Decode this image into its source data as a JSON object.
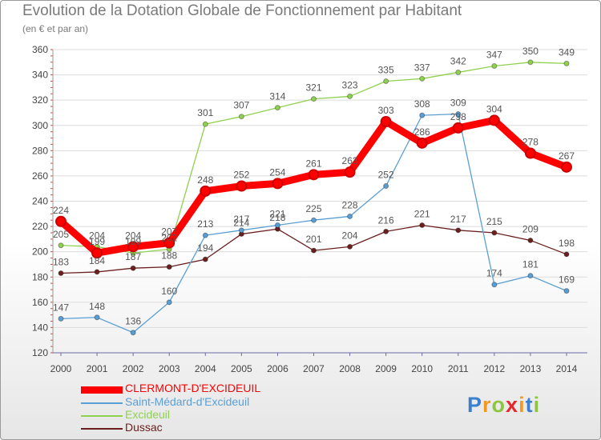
{
  "chart_data": {
    "type": "line",
    "title": "Evolution de la Dotation Globale de Fonctionnement par Habitant",
    "subtitle": "(en € et par an)",
    "x": [
      "2000",
      "2001",
      "2002",
      "2003",
      "2004",
      "2005",
      "2006",
      "2007",
      "2008",
      "2009",
      "2010",
      "2011",
      "2012",
      "2013",
      "2014"
    ],
    "ylim": [
      120,
      360
    ],
    "yticks": [
      120,
      140,
      160,
      180,
      200,
      220,
      240,
      260,
      280,
      300,
      320,
      340,
      360
    ],
    "grid": true,
    "legend_position": "bottom-left",
    "series": [
      {
        "name": "CLERMONT-D'EXCIDEUIL",
        "color": "#ff0000",
        "values": [
          224,
          199,
          204,
          207,
          248,
          252,
          254,
          261,
          263,
          303,
          286,
          298,
          304,
          278,
          267
        ]
      },
      {
        "name": "Saint-Médard-d'Excideuil",
        "color": "#5a9fd4",
        "values": [
          147,
          148,
          136,
          160,
          213,
          217,
          221,
          225,
          228,
          252,
          308,
          309,
          174,
          181,
          169
        ]
      },
      {
        "name": "Excideuil",
        "color": "#8fd14f",
        "values": [
          205,
          204,
          199,
          202,
          301,
          307,
          314,
          321,
          323,
          335,
          337,
          342,
          347,
          350,
          349
        ]
      },
      {
        "name": "Dussac",
        "color": "#6b2020",
        "values": [
          183,
          184,
          187,
          188,
          194,
          214,
          218,
          201,
          204,
          216,
          221,
          217,
          215,
          209,
          198
        ]
      }
    ]
  },
  "logo": {
    "letters": [
      "P",
      "r",
      "o",
      "x",
      "i",
      "t",
      "i"
    ],
    "colors": [
      "#3b7fcf",
      "#f29a1f",
      "#8cc63f",
      "#e8262a",
      "#f29a1f",
      "#3b7fcf",
      "#8cc63f"
    ]
  }
}
